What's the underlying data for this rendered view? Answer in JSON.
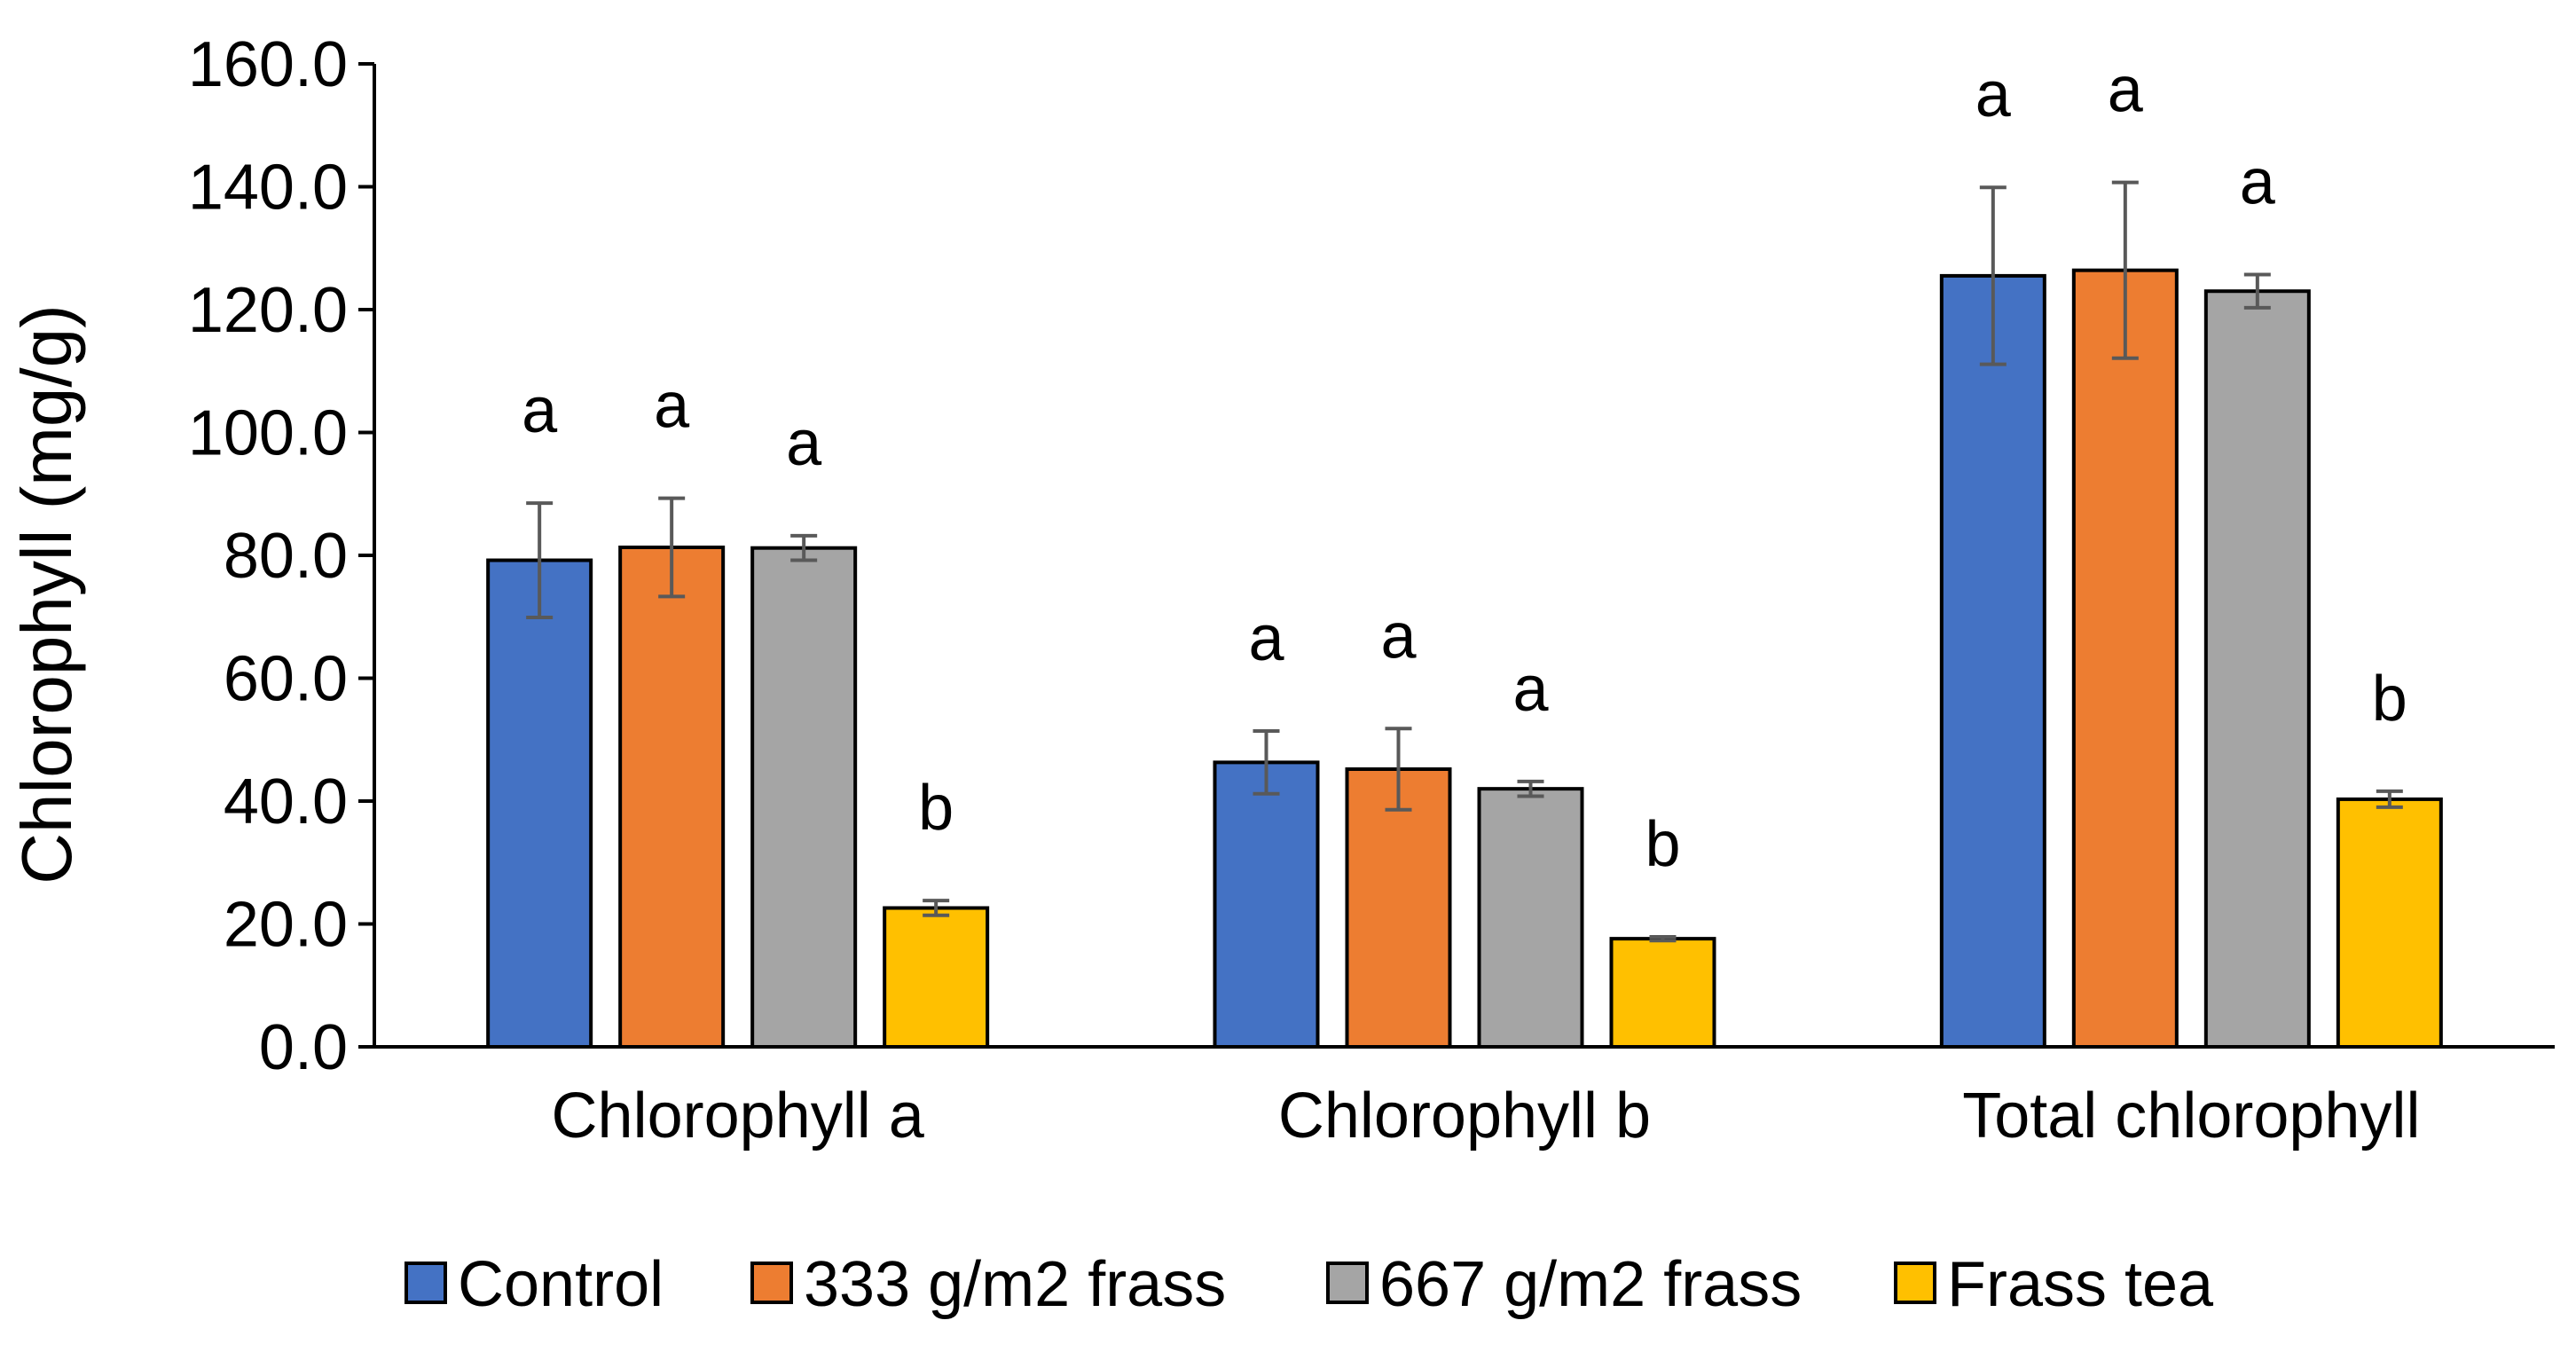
{
  "chart_data": {
    "type": "bar",
    "title": "",
    "xlabel": "",
    "ylabel": "Chlorophyll (mg/g)",
    "ylim": [
      0,
      160
    ],
    "ytick_step": 20,
    "tick_labels": [
      "0.0",
      "20.0",
      "40.0",
      "60.0",
      "80.0",
      "100.0",
      "120.0",
      "140.0",
      "160.0"
    ],
    "grid": false,
    "legend_position": "bottom",
    "categories": [
      "Chlorophyll a",
      "Chlorophyll b",
      "Total chlorophyll"
    ],
    "series": [
      {
        "name": "Control",
        "color": "#4472C4",
        "values": [
          79.2,
          46.3,
          125.5
        ],
        "errors": [
          9.3,
          5.1,
          14.4
        ],
        "labels": [
          "a",
          "a",
          "a"
        ]
      },
      {
        "name": "333 g/m2 frass",
        "color": "#ED7D31",
        "values": [
          81.3,
          45.2,
          126.4
        ],
        "errors": [
          8.0,
          6.6,
          14.3
        ],
        "labels": [
          "a",
          "a",
          "a"
        ]
      },
      {
        "name": "667 g/m2 frass",
        "color": "#A5A5A5",
        "values": [
          81.2,
          42.0,
          123.0
        ],
        "errors": [
          2.0,
          1.2,
          2.7
        ],
        "labels": [
          "a",
          "a",
          "a"
        ]
      },
      {
        "name": "Frass tea",
        "color": "#FFC000",
        "values": [
          22.6,
          17.6,
          40.3
        ],
        "errors": [
          1.2,
          0.3,
          1.3
        ],
        "labels": [
          "b",
          "b",
          "b"
        ]
      }
    ]
  }
}
